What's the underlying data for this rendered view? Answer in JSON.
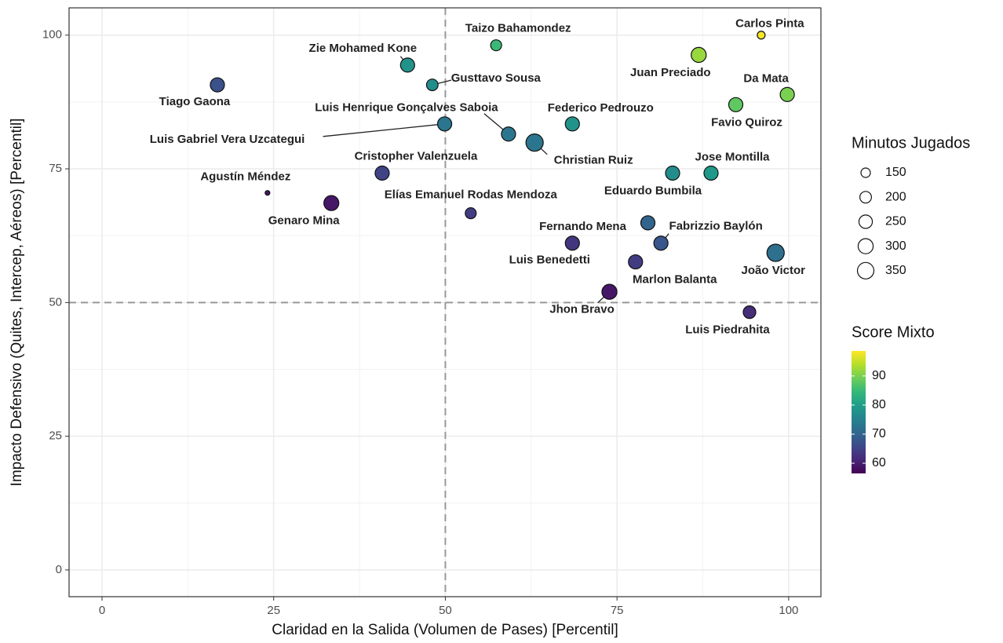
{
  "chart_data": {
    "type": "scatter",
    "xlabel": "Claridad en la Salida (Volumen de Pases) [Percentil]",
    "ylabel": "Impacto Defensivo (Quites, Intercep, Aéreos) [Percentil]",
    "xlim": [
      -4.8,
      104.7
    ],
    "ylim": [
      -5.0,
      105.1
    ],
    "xticks": [
      0,
      25,
      50,
      75,
      100
    ],
    "yticks": [
      0,
      25,
      50,
      75,
      100
    ],
    "grid": true,
    "vlines": [
      50
    ],
    "hlines": [
      50
    ],
    "points": [
      {
        "name": "Carlos Pinta",
        "x": 96.0,
        "y": 100.0,
        "size": 120,
        "score": 98
      },
      {
        "name": "Taizo Bahamondez",
        "x": 57.4,
        "y": 98.1,
        "size": 185,
        "score": 85
      },
      {
        "name": "Juan Preciado",
        "x": 86.9,
        "y": 96.3,
        "size": 300,
        "score": 92
      },
      {
        "name": "Zie Mohamed Kone",
        "x": 44.5,
        "y": 94.4,
        "size": 272,
        "score": 78
      },
      {
        "name": "Gusttavo Sousa",
        "x": 48.1,
        "y": 90.7,
        "size": 200,
        "score": 77
      },
      {
        "name": "Tiago Gaona",
        "x": 16.8,
        "y": 90.7,
        "size": 272,
        "score": 67
      },
      {
        "name": "Da Mata",
        "x": 99.8,
        "y": 88.9,
        "size": 272,
        "score": 90
      },
      {
        "name": "Favio Quiroz",
        "x": 92.3,
        "y": 87.0,
        "size": 272,
        "score": 88
      },
      {
        "name": "Luis Henrique Gonçalves Saboia",
        "x": 59.2,
        "y": 81.5,
        "size": 272,
        "score": 73
      },
      {
        "name": "Luis Gabriel Vera Uzcategui",
        "x": 49.9,
        "y": 83.4,
        "size": 272,
        "score": 73
      },
      {
        "name": "Federico Pedrouzo",
        "x": 68.5,
        "y": 83.4,
        "size": 272,
        "score": 78
      },
      {
        "name": "Christian Ruiz",
        "x": 63.0,
        "y": 79.9,
        "size": 380,
        "score": 73
      },
      {
        "name": "Cristopher Valenzuela",
        "x": 40.8,
        "y": 74.2,
        "size": 272,
        "score": 65
      },
      {
        "name": "Jose Montilla",
        "x": 88.7,
        "y": 74.2,
        "size": 272,
        "score": 79
      },
      {
        "name": "Eduardo Bumbila",
        "x": 83.1,
        "y": 74.2,
        "size": 272,
        "score": 77
      },
      {
        "name": "Agustín Méndez",
        "x": 24.1,
        "y": 70.5,
        "size": 77,
        "score": 59
      },
      {
        "name": "Genaro Mina",
        "x": 33.4,
        "y": 68.6,
        "size": 300,
        "score": 59
      },
      {
        "name": "Elías Emanuel Rodas Mendoza",
        "x": 53.7,
        "y": 66.7,
        "size": 185,
        "score": 64
      },
      {
        "name": "Fernando Mena",
        "x": 79.5,
        "y": 64.9,
        "size": 272,
        "score": 70
      },
      {
        "name": "Fabrizzio Baylón",
        "x": 81.4,
        "y": 61.1,
        "size": 272,
        "score": 68
      },
      {
        "name": "Luis Benedetti",
        "x": 68.5,
        "y": 61.1,
        "size": 272,
        "score": 63
      },
      {
        "name": "João Victor",
        "x": 98.1,
        "y": 59.3,
        "size": 380,
        "score": 72
      },
      {
        "name": "Marlon Balanta",
        "x": 77.7,
        "y": 57.6,
        "size": 272,
        "score": 64
      },
      {
        "name": "Jhon Bravo",
        "x": 73.9,
        "y": 52.0,
        "size": 300,
        "score": 59
      },
      {
        "name": "Luis Piedrahita",
        "x": 94.3,
        "y": 48.2,
        "size": 226,
        "score": 62
      }
    ],
    "size_legend": {
      "title": "Minutos Jugados",
      "values": [
        150,
        200,
        250,
        300,
        350
      ]
    },
    "color_legend": {
      "title": "Score Mixto",
      "lim": [
        56.5,
        98.6
      ],
      "ticks": [
        60,
        70,
        80,
        90
      ],
      "colormap": "viridis"
    }
  }
}
